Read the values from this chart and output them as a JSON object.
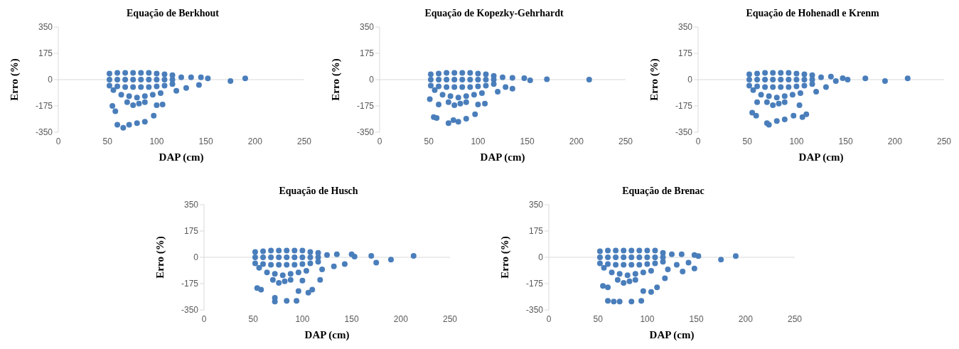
{
  "chart_data": [
    {
      "type": "scatter",
      "title": "Equação de Berkhout",
      "xlabel": "DAP (cm)",
      "ylabel": "Erro (%)",
      "xlim": [
        0,
        250
      ],
      "xticks": [
        0,
        50,
        100,
        150,
        200,
        250
      ],
      "ylim": [
        -350,
        350
      ],
      "yticks": [
        -350,
        -175,
        0,
        175,
        350
      ],
      "marker": "circle",
      "ref_lines": [
        {
          "axis": "y",
          "value": 0,
          "color": "#d9d9d9"
        }
      ],
      "series": [
        {
          "color": "#4a7ebb",
          "x": [
            52,
            60,
            68,
            76,
            84,
            92,
            100,
            108,
            116,
            52,
            60,
            68,
            76,
            84,
            92,
            100,
            108,
            116,
            52,
            60,
            68,
            76,
            84,
            92,
            100,
            108,
            116,
            56,
            64,
            72,
            80,
            88,
            96,
            104,
            70,
            76,
            82,
            88,
            125,
            135,
            145,
            152,
            175,
            190,
            120,
            130,
            143,
            55,
            58,
            60,
            66,
            72,
            80,
            88,
            97,
            100,
            106
          ],
          "values": [
            40,
            45,
            45,
            45,
            45,
            45,
            40,
            35,
            30,
            0,
            0,
            0,
            0,
            0,
            0,
            0,
            0,
            0,
            -40,
            -45,
            -50,
            -50,
            -50,
            -50,
            -45,
            -40,
            -30,
            -70,
            -100,
            -110,
            -120,
            -110,
            -100,
            -90,
            -150,
            -170,
            -160,
            -150,
            15,
            15,
            15,
            8,
            -10,
            8,
            -75,
            -55,
            -35,
            -175,
            -210,
            -300,
            -320,
            -300,
            -290,
            -280,
            -240,
            -170,
            -165
          ]
        }
      ]
    },
    {
      "type": "scatter",
      "title": "Equação de Kopezky-Gehrhardt",
      "xlabel": "DAP (cm)",
      "ylabel": "Erro (%)",
      "xlim": [
        0,
        250
      ],
      "xticks": [
        0,
        50,
        100,
        150,
        200,
        250
      ],
      "ylim": [
        -350,
        350
      ],
      "yticks": [
        -350,
        -175,
        0,
        175,
        350
      ],
      "marker": "circle",
      "ref_lines": [
        {
          "axis": "y",
          "value": 0,
          "color": "#d9d9d9"
        }
      ],
      "series": [
        {
          "color": "#4a7ebb",
          "x": [
            52,
            60,
            68,
            76,
            84,
            92,
            100,
            108,
            116,
            52,
            60,
            68,
            76,
            84,
            92,
            100,
            108,
            116,
            52,
            60,
            68,
            76,
            84,
            92,
            100,
            108,
            116,
            56,
            64,
            72,
            80,
            88,
            96,
            104,
            70,
            76,
            82,
            88,
            125,
            135,
            147,
            153,
            170,
            213,
            120,
            128,
            135,
            51,
            55,
            58,
            60,
            70,
            75,
            80,
            88,
            97,
            100,
            107
          ],
          "values": [
            35,
            40,
            45,
            45,
            45,
            45,
            40,
            35,
            25,
            0,
            0,
            0,
            0,
            0,
            0,
            0,
            0,
            0,
            -40,
            -45,
            -50,
            -50,
            -50,
            -50,
            -45,
            -40,
            -30,
            -70,
            -100,
            -110,
            -120,
            -110,
            -100,
            -90,
            -150,
            -170,
            -160,
            -150,
            15,
            12,
            10,
            -5,
            2,
            0,
            -80,
            -50,
            -60,
            -130,
            -250,
            -255,
            -165,
            -290,
            -270,
            -280,
            -260,
            -230,
            -165,
            -160
          ]
        }
      ]
    },
    {
      "type": "scatter",
      "title": "Equação de Hohenadl e Krenm",
      "xlabel": "DAP (cm)",
      "ylabel": "Erro (%)",
      "xlim": [
        0,
        250
      ],
      "xticks": [
        0,
        50,
        100,
        150,
        200,
        250
      ],
      "ylim": [
        -350,
        350
      ],
      "yticks": [
        -350,
        -175,
        0,
        175,
        350
      ],
      "marker": "circle",
      "ref_lines": [
        {
          "axis": "y",
          "value": 0,
          "color": "#d9d9d9"
        }
      ],
      "series": [
        {
          "color": "#4a7ebb",
          "x": [
            52,
            60,
            68,
            76,
            84,
            92,
            100,
            108,
            116,
            52,
            60,
            68,
            76,
            84,
            92,
            100,
            108,
            116,
            52,
            60,
            68,
            76,
            84,
            92,
            100,
            108,
            116,
            56,
            64,
            72,
            80,
            88,
            96,
            104,
            70,
            76,
            82,
            88,
            125,
            135,
            147,
            152,
            170,
            190,
            213,
            120,
            130,
            140,
            55,
            59,
            60,
            70,
            72,
            80,
            88,
            97,
            106,
            110,
            103
          ],
          "values": [
            35,
            40,
            45,
            45,
            45,
            45,
            40,
            35,
            30,
            0,
            0,
            0,
            0,
            0,
            0,
            0,
            0,
            0,
            -40,
            -45,
            -50,
            -50,
            -50,
            -50,
            -45,
            -40,
            -30,
            -70,
            -100,
            -110,
            -120,
            -110,
            -100,
            -90,
            -150,
            -170,
            -160,
            -150,
            15,
            20,
            10,
            0,
            8,
            -10,
            8,
            -80,
            -50,
            -10,
            -220,
            -240,
            -150,
            -290,
            -300,
            -275,
            -265,
            -240,
            -250,
            -230,
            -170
          ]
        }
      ]
    },
    {
      "type": "scatter",
      "title": "Equação de Husch",
      "xlabel": "DAP (cm)",
      "ylabel": "Erro (%)",
      "xlim": [
        0,
        250
      ],
      "xticks": [
        0,
        50,
        100,
        150,
        200,
        250
      ],
      "ylim": [
        -350,
        350
      ],
      "yticks": [
        -350,
        -175,
        0,
        175,
        350
      ],
      "marker": "circle",
      "ref_lines": [
        {
          "axis": "y",
          "value": 0,
          "color": "#d9d9d9"
        }
      ],
      "series": [
        {
          "color": "#4a7ebb",
          "x": [
            52,
            60,
            68,
            76,
            84,
            92,
            100,
            108,
            116,
            52,
            60,
            68,
            76,
            84,
            92,
            100,
            108,
            116,
            52,
            60,
            68,
            76,
            84,
            92,
            100,
            108,
            116,
            56,
            64,
            72,
            80,
            88,
            96,
            104,
            70,
            76,
            82,
            88,
            125,
            135,
            150,
            153,
            170,
            175,
            190,
            213,
            120,
            132,
            143,
            118,
            54,
            58,
            72,
            72,
            84,
            94,
            96,
            106,
            110,
            100
          ],
          "values": [
            35,
            40,
            45,
            45,
            45,
            45,
            45,
            35,
            30,
            0,
            0,
            0,
            0,
            0,
            0,
            0,
            0,
            0,
            -40,
            -45,
            -50,
            -50,
            -50,
            -50,
            -45,
            -40,
            -30,
            -70,
            -100,
            -110,
            -120,
            -110,
            -100,
            -90,
            -150,
            -170,
            -160,
            -150,
            15,
            20,
            20,
            5,
            10,
            -35,
            -15,
            10,
            -80,
            -60,
            -45,
            -150,
            -205,
            -215,
            -270,
            -295,
            -290,
            -290,
            -225,
            -235,
            -215,
            -155
          ]
        }
      ]
    },
    {
      "type": "scatter",
      "title": "Equação de Brenac",
      "xlabel": "DAP (cm)",
      "ylabel": "Erro (%)",
      "xlim": [
        0,
        250
      ],
      "xticks": [
        0,
        50,
        100,
        150,
        200,
        250
      ],
      "ylim": [
        -350,
        350
      ],
      "yticks": [
        -350,
        -175,
        0,
        175,
        350
      ],
      "marker": "circle",
      "ref_lines": [
        {
          "axis": "y",
          "value": 0,
          "color": "#d9d9d9"
        }
      ],
      "series": [
        {
          "color": "#4a7ebb",
          "x": [
            52,
            60,
            68,
            76,
            84,
            92,
            100,
            108,
            116,
            52,
            60,
            68,
            76,
            84,
            92,
            100,
            108,
            116,
            52,
            60,
            68,
            76,
            84,
            92,
            100,
            108,
            116,
            56,
            64,
            72,
            80,
            88,
            96,
            104,
            70,
            76,
            82,
            88,
            125,
            135,
            148,
            152,
            175,
            190,
            121,
            130,
            136,
            148,
            142,
            55,
            60,
            60,
            66,
            72,
            84,
            94,
            96,
            104,
            110,
            118
          ],
          "values": [
            40,
            45,
            45,
            45,
            45,
            45,
            45,
            45,
            30,
            0,
            0,
            0,
            0,
            0,
            0,
            0,
            0,
            0,
            -40,
            -45,
            -50,
            -50,
            -50,
            -50,
            -45,
            -40,
            -30,
            -70,
            -100,
            -110,
            -120,
            -110,
            -100,
            -90,
            -150,
            -170,
            -160,
            -150,
            20,
            20,
            15,
            8,
            -15,
            8,
            -80,
            -50,
            -95,
            -75,
            -35,
            -190,
            -200,
            -290,
            -295,
            -295,
            -295,
            -290,
            -225,
            -230,
            -200,
            -140
          ]
        }
      ]
    }
  ]
}
